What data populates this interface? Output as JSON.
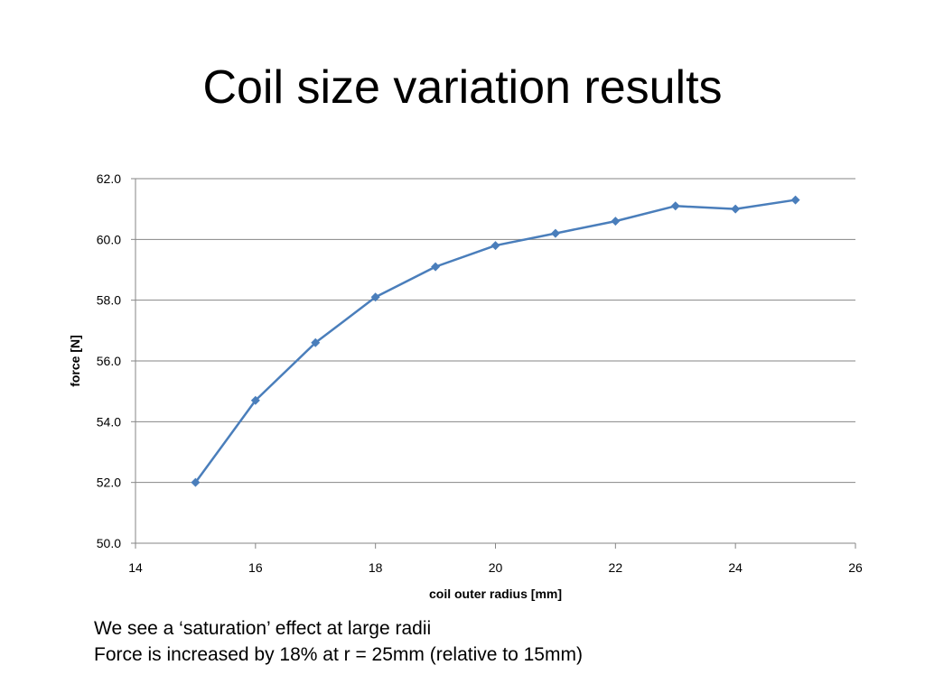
{
  "slide": {
    "title": "Coil size variation results",
    "notes": [
      "We see a ‘saturation’ effect at large radii",
      "Force is increased by 18% at r = 25mm (relative to 15mm)"
    ]
  },
  "chart_data": {
    "type": "line",
    "x": [
      15,
      16,
      17,
      18,
      19,
      20,
      21,
      22,
      23,
      24,
      25
    ],
    "series": [
      {
        "values": [
          52.0,
          54.7,
          56.6,
          58.1,
          59.1,
          59.8,
          60.2,
          60.6,
          61.1,
          61.0,
          61.3
        ],
        "color": "#4a7ebb",
        "marker": "diamond"
      }
    ],
    "xlabel": "coil outer radius [mm]",
    "ylabel": "force [N]",
    "xlim": [
      14,
      26
    ],
    "ylim": [
      50,
      62
    ],
    "xticks": [
      14,
      16,
      18,
      20,
      22,
      24,
      26
    ],
    "xtick_labels": [
      "14",
      "16",
      "18",
      "20",
      "22",
      "24",
      "26"
    ],
    "yticks": [
      50,
      52,
      54,
      56,
      58,
      60,
      62
    ],
    "ytick_labels": [
      "50.0",
      "52.0",
      "54.0",
      "56.0",
      "58.0",
      "60.0",
      "62.0"
    ],
    "grid": "horizontal",
    "legend": "none"
  }
}
